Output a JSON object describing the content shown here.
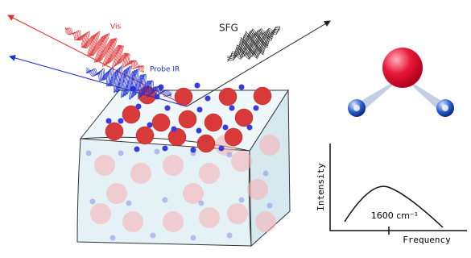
{
  "beams": {
    "vis": "Vis",
    "probe_ir": "Probe IR",
    "sfg": "SFG"
  },
  "spectrum": {
    "y_label": "Intensity",
    "x_label": "Frequency",
    "peak_label": "1600 cm⁻¹"
  }
}
